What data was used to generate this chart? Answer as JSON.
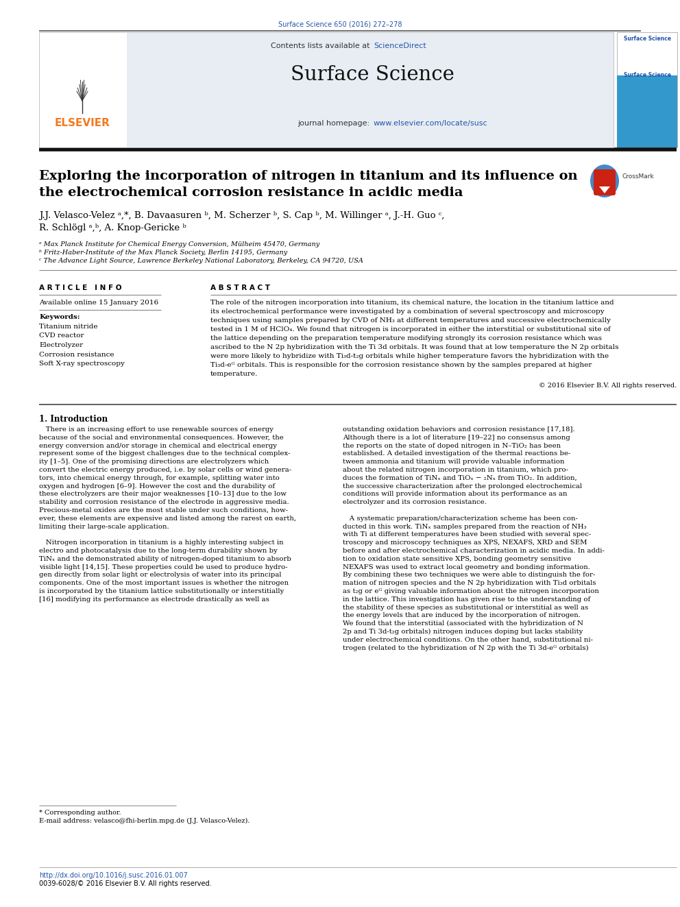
{
  "page_title": "Surface Science 650 (2016) 272–278",
  "journal_name": "Surface Science",
  "contents_text": "Contents lists available at ",
  "sciencedirect_text": "ScienceDirect",
  "journal_homepage_text": "journal homepage: ",
  "journal_url": "www.elsevier.com/locate/susc",
  "elsevier_text": "ELSEVIER",
  "paper_title_line1": "Exploring the incorporation of nitrogen in titanium and its influence on",
  "paper_title_line2": "the electrochemical corrosion resistance in acidic media",
  "authors_line1": "J.J. Velasco-Velez ᵃ,*, B. Davaasuren ᵇ, M. Scherzer ᵇ, S. Cap ᵇ, M. Willinger ᵃ, J.-H. Guo ᶜ,",
  "authors_line2": "R. Schlögl ᵃ,ᵇ, A. Knop-Gericke ᵇ",
  "affil_a": "ᵃ Max Planck Institute for Chemical Energy Conversion, Mülheim 45470, Germany",
  "affil_b": "ᵇ Fritz-Haber-Institute of the Max Planck Society, Berlin 14195, Germany",
  "affil_c": "ᶜ The Advance Light Source, Lawrence Berkeley National Laboratory, Berkeley, CA 94720, USA",
  "article_info_title": "A R T I C L E   I N F O",
  "available_online": "Available online 15 January 2016",
  "keywords_title": "Keywords:",
  "keywords": [
    "Titanium nitride",
    "CVD reactor",
    "Electrolyzer",
    "Corrosion resistance",
    "Soft X-ray spectroscopy"
  ],
  "abstract_title": "A B S T R A C T",
  "abstract_lines": [
    "The role of the nitrogen incorporation into titanium, its chemical nature, the location in the titanium lattice and",
    "its electrochemical performance were investigated by a combination of several spectroscopy and microscopy",
    "techniques using samples prepared by CVD of NH₃ at different temperatures and successive electrochemically",
    "tested in 1 M of HClO₄. We found that nitrogen is incorporated in either the interstitial or substitutional site of",
    "the lattice depending on the preparation temperature modifying strongly its corrosion resistance which was",
    "ascribed to the N 2p hybridization with the Ti 3d orbitals. It was found that at low temperature the N 2p orbitals",
    "were more likely to hybridize with Ti₃d-t₂g orbitals while higher temperature favors the hybridization with the",
    "Ti₃d-eᴳ orbitals. This is responsible for the corrosion resistance shown by the samples prepared at higher",
    "temperature."
  ],
  "copyright_text": "© 2016 Elsevier B.V. All rights reserved.",
  "intro_title": "1. Introduction",
  "left_col_lines": [
    "   There is an increasing effort to use renewable sources of energy",
    "because of the social and environmental consequences. However, the",
    "energy conversion and/or storage in chemical and electrical energy",
    "represent some of the biggest challenges due to the technical complex-",
    "ity [1–5]. One of the promising directions are electrolyzers which",
    "convert the electric energy produced, i.e. by solar cells or wind genera-",
    "tors, into chemical energy through, for example, splitting water into",
    "oxygen and hydrogen [6–9]. However the cost and the durability of",
    "these electrolyzers are their major weaknesses [10–13] due to the low",
    "stability and corrosion resistance of the electrode in aggressive media.",
    "Precious-metal oxides are the most stable under such conditions, how-",
    "ever, these elements are expensive and listed among the rarest on earth,",
    "limiting their large-scale application.",
    "",
    "   Nitrogen incorporation in titanium is a highly interesting subject in",
    "electro and photocatalysis due to the long-term durability shown by",
    "TiNₓ and the demonstrated ability of nitrogen-doped titanium to absorb",
    "visible light [14,15]. These properties could be used to produce hydro-",
    "gen directly from solar light or electrolysis of water into its principal",
    "components. One of the most important issues is whether the nitrogen",
    "is incorporated by the titanium lattice substitutionally or interstitially",
    "[16] modifying its performance as electrode drastically as well as"
  ],
  "right_col_lines": [
    "outstanding oxidation behaviors and corrosion resistance [17,18].",
    "Although there is a lot of literature [19–22] no consensus among",
    "the reports on the state of doped nitrogen in N–TiO₂ has been",
    "established. A detailed investigation of the thermal reactions be-",
    "tween ammonia and titanium will provide valuable information",
    "about the related nitrogen incorporation in titanium, which pro-",
    "duces the formation of TiNₓ and TiOₓ − ₂Nₓ from TiO₂. In addition,",
    "the successive characterization after the prolonged electrochemical",
    "conditions will provide information about its performance as an",
    "electrolyzer and its corrosion resistance.",
    "",
    "   A systematic preparation/characterization scheme has been con-",
    "ducted in this work. TiNₓ samples prepared from the reaction of NH₃",
    "with Ti at different temperatures have been studied with several spec-",
    "troscopy and microscopy techniques as XPS, NEXAFS, XRD and SEM",
    "before and after electrochemical characterization in acidic media. In addi-",
    "tion to oxidation state sensitive XPS, bonding geometry sensitive",
    "NEXAFS was used to extract local geometry and bonding information.",
    "By combining these two techniques we were able to distinguish the for-",
    "mation of nitrogen species and the N 2p hybridization with Ti₃d orbitals",
    "as t₂g or eᴳ giving valuable information about the nitrogen incorporation",
    "in the lattice. This investigation has given rise to the understanding of",
    "the stability of these species as substitutional or interstitial as well as",
    "the energy levels that are induced by the incorporation of nitrogen.",
    "We found that the interstitial (associated with the hybridization of N",
    "2p and Ti 3d-t₂g orbitals) nitrogen induces doping but lacks stability",
    "under electrochemical conditions. On the other hand, substitutional ni-",
    "trogen (related to the hybridization of N 2p with the Ti 3d-eᴳ orbitals)"
  ],
  "corresponding_author": "* Corresponding author.",
  "email_text": "E-mail address: velasco@fhi-berlin.mpg.de (J.J. Velasco-Velez).",
  "footer_doi": "http://dx.doi.org/10.1016/j.susc.2016.01.007",
  "footer_issn": "0039-6028/© 2016 Elsevier B.V. All rights reserved.",
  "header_bg": "#e8edf3",
  "link_color": "#2255aa",
  "elsevier_color": "#f47920",
  "separator_color": "#333333",
  "line_color": "#aaaaaa",
  "thick_line_color": "#111111"
}
